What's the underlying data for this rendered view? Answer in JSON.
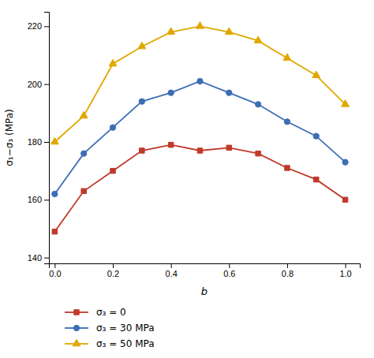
{
  "chart_data": {
    "type": "line",
    "xlabel": "b",
    "ylabel": "σ₁−σ₃ (MPa)",
    "x": [
      0.0,
      0.1,
      0.2,
      0.3,
      0.4,
      0.5,
      0.6,
      0.7,
      0.8,
      0.9,
      1.0
    ],
    "series": [
      {
        "name": "σ₃ = 0",
        "color": "#c0392b",
        "marker": "square",
        "values": [
          149,
          163,
          170,
          177,
          179,
          177,
          178,
          176,
          171,
          167,
          160
        ]
      },
      {
        "name": "σ₃ = 30 MPa",
        "color": "#3d6eb5",
        "marker": "circle",
        "values": [
          162,
          176,
          185,
          194,
          197,
          201,
          197,
          193,
          187,
          182,
          173
        ]
      },
      {
        "name": "σ₃ = 50 MPa",
        "color": "#e0a800",
        "marker": "triangle",
        "values": [
          180,
          189,
          207,
          213,
          218,
          220,
          218,
          215,
          209,
          203,
          193
        ]
      }
    ],
    "xlim": [
      -0.02,
      1.05
    ],
    "ylim": [
      138,
      225
    ],
    "xticks": [
      {
        "value": 0.0,
        "label": "0.0"
      },
      0.2,
      0.4,
      0.6,
      0.8,
      {
        "value": 1.0,
        "label": "1.0"
      }
    ],
    "yticks": [
      140,
      160,
      180,
      200,
      220
    ],
    "grid": false,
    "legend": "bottom"
  }
}
